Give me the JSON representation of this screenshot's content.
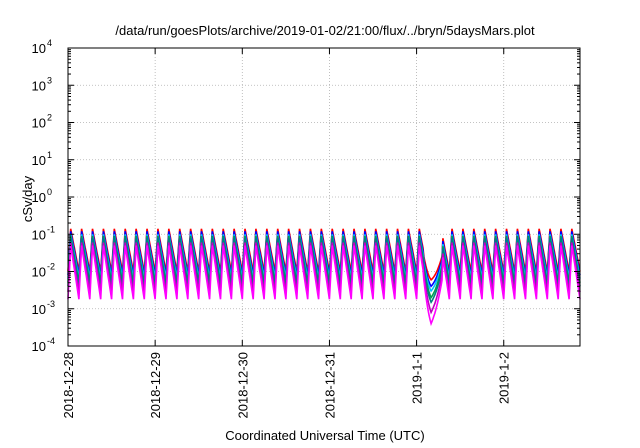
{
  "chart_data": {
    "type": "line",
    "title": "/data/run/goesPlots/archive/2019-01-02/21:00/flux/../bryn/5daysMars.plot",
    "xlabel": "Coordinated Universal Time (UTC)",
    "ylabel": "cSv/day",
    "yscale": "log",
    "ylim": [
      0.0001,
      10000
    ],
    "xlim": [
      "2018-12-28 00:00",
      "2019-01-02 21:00"
    ],
    "grid": true,
    "x_ticks": [
      "2018-12-28",
      "2018-12-29",
      "2018-12-30",
      "2018-12-31",
      "2019-1-1",
      "2019-1-2"
    ],
    "y_ticks": [
      {
        "base": "10",
        "exp": "-4"
      },
      {
        "base": "10",
        "exp": "-3"
      },
      {
        "base": "10",
        "exp": "-2"
      },
      {
        "base": "10",
        "exp": "-1"
      },
      {
        "base": "10",
        "exp": "0"
      },
      {
        "base": "10",
        "exp": "1"
      },
      {
        "base": "10",
        "exp": "2"
      },
      {
        "base": "10",
        "exp": "3"
      },
      {
        "base": "10",
        "exp": "4"
      }
    ],
    "series": [
      {
        "color": "#ff0000",
        "peak": 0.14,
        "trough": 0.01,
        "dip_min": 0.006,
        "dip_x": "2019-01-01 04:00"
      },
      {
        "color": "#0000ff",
        "peak": 0.12,
        "trough": 0.008,
        "dip_min": 0.004,
        "dip_x": "2019-01-01 04:00"
      },
      {
        "color": "#00bfff",
        "peak": 0.1,
        "trough": 0.0065,
        "dip_min": 0.003,
        "dip_x": "2019-01-01 04:00"
      },
      {
        "color": "#00a050",
        "peak": 0.09,
        "trough": 0.005,
        "dip_min": 0.002,
        "dip_x": "2019-01-01 04:00"
      },
      {
        "color": "#008080",
        "peak": 0.08,
        "trough": 0.004,
        "dip_min": 0.0015,
        "dip_x": "2019-01-01 04:00"
      },
      {
        "color": "#c000c0",
        "peak": 0.06,
        "trough": 0.0028,
        "dip_min": 0.0008,
        "dip_x": "2019-01-01 04:00"
      },
      {
        "color": "#ff00ff",
        "peak": 0.05,
        "trough": 0.0018,
        "dip_min": 0.0004,
        "dip_x": "2019-01-01 04:00"
      }
    ],
    "pattern": {
      "period_hours": 3,
      "dip_start": "2019-01-01 02:00",
      "dip_end": "2019-01-01 07:00"
    }
  }
}
